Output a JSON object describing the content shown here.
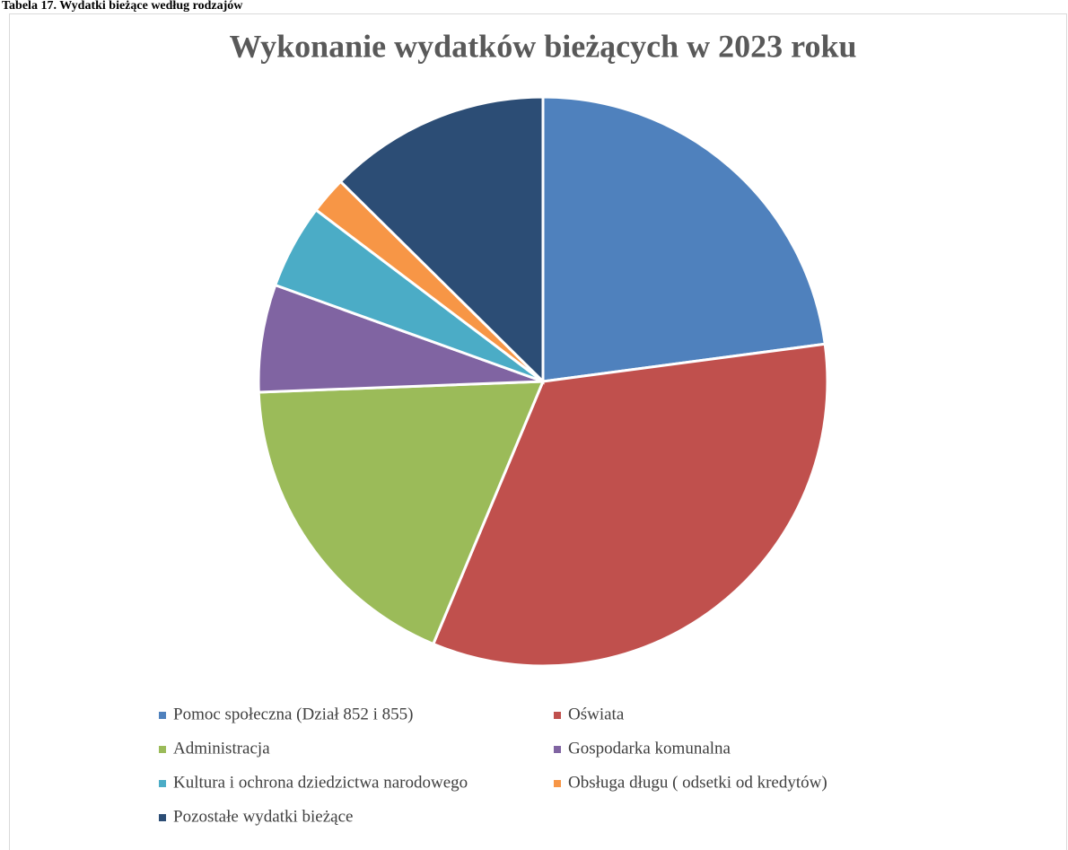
{
  "caption": "Tabela 17.  Wydatki bieżące według rodzajów",
  "chart_data": {
    "type": "pie",
    "title": "Wykonanie wydatków bieżących w 2023 roku",
    "categories": [
      "Pomoc społeczna (Dział 852 i 855)",
      "Oświata",
      "Administracja",
      "Gospodarka komunalna",
      "Kultura i ochrona dziedzictwa narodowego",
      "Obsługa długu ( odsetki od kredytów)",
      "Pozostałe wydatki bieżące"
    ],
    "values": [
      22.9,
      33.4,
      18.1,
      6.1,
      4.8,
      2.1,
      12.6
    ],
    "colors": [
      "#4f81bd",
      "#c0504d",
      "#9bbb59",
      "#8064a2",
      "#4bacc6",
      "#f79646",
      "#2c4d75"
    ],
    "legend": "bottom"
  }
}
